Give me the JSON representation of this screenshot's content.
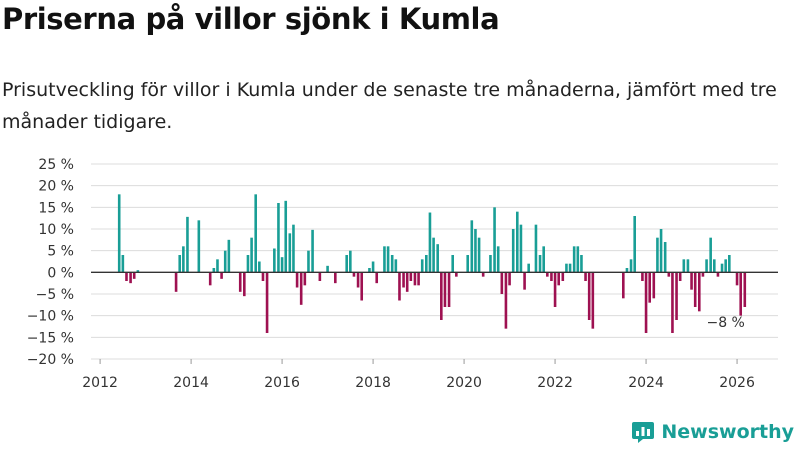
{
  "header": {
    "title": "Priserna på villor sjönk i Kumla",
    "subtitle": "Prisutveckling för villor i Kumla under de senaste tre månaderna, jämfört med tre månader tidigare."
  },
  "brand": {
    "name": "Newsworthy"
  },
  "colors": {
    "positive": "#199e96",
    "negative": "#9e1151",
    "grid": "#dcdcdc",
    "zero": "#333333"
  },
  "chart_data": {
    "type": "bar",
    "title": "Priserna på villor sjönk i Kumla",
    "subtitle": "Prisutveckling för villor i Kumla under de senaste tre månaderna, jämfört med tre månader tidigare.",
    "xlabel": "",
    "ylabel": "",
    "unit": "%",
    "ylim": [
      -20,
      25
    ],
    "yticks": [
      25,
      20,
      15,
      10,
      5,
      0,
      -5,
      -10,
      -15,
      -20
    ],
    "ytick_labels": [
      "25 %",
      "20 %",
      "15 %",
      "10 %",
      "5 %",
      "0 %",
      "−5 %",
      "−10 %",
      "−15 %",
      "−20 %"
    ],
    "xlim": [
      2011.8,
      2026.9
    ],
    "xticks": [
      2012,
      2014,
      2016,
      2018,
      2020,
      2022,
      2024,
      2026
    ],
    "xtick_labels": [
      "2012",
      "2014",
      "2016",
      "2018",
      "2020",
      "2022",
      "2024",
      "2026"
    ],
    "grid": true,
    "annotation": {
      "text": "−8 %",
      "x": 2025.75,
      "y": -8
    },
    "series": [
      {
        "name": "Prisutveckling",
        "points": [
          {
            "x": 2012.42,
            "y": 18
          },
          {
            "x": 2012.5,
            "y": 4
          },
          {
            "x": 2012.58,
            "y": -2
          },
          {
            "x": 2012.67,
            "y": -2.5
          },
          {
            "x": 2012.75,
            "y": -1.5
          },
          {
            "x": 2012.83,
            "y": 0.5
          },
          {
            "x": 2013.67,
            "y": -4.5
          },
          {
            "x": 2013.75,
            "y": 4
          },
          {
            "x": 2013.83,
            "y": 6
          },
          {
            "x": 2013.92,
            "y": 12.8
          },
          {
            "x": 2014.17,
            "y": 12
          },
          {
            "x": 2014.42,
            "y": -3
          },
          {
            "x": 2014.5,
            "y": 1
          },
          {
            "x": 2014.58,
            "y": 3
          },
          {
            "x": 2014.67,
            "y": -1.5
          },
          {
            "x": 2014.75,
            "y": 5
          },
          {
            "x": 2014.83,
            "y": 7.5
          },
          {
            "x": 2015.08,
            "y": -4.5
          },
          {
            "x": 2015.17,
            "y": -5.5
          },
          {
            "x": 2015.25,
            "y": 4
          },
          {
            "x": 2015.33,
            "y": 8
          },
          {
            "x": 2015.42,
            "y": 18
          },
          {
            "x": 2015.5,
            "y": 2.5
          },
          {
            "x": 2015.58,
            "y": -2
          },
          {
            "x": 2015.67,
            "y": -14
          },
          {
            "x": 2015.83,
            "y": 5.5
          },
          {
            "x": 2015.92,
            "y": 16
          },
          {
            "x": 2016.0,
            "y": 3.5
          },
          {
            "x": 2016.08,
            "y": 16.5
          },
          {
            "x": 2016.17,
            "y": 9
          },
          {
            "x": 2016.25,
            "y": 11
          },
          {
            "x": 2016.33,
            "y": -3.5
          },
          {
            "x": 2016.42,
            "y": -7.5
          },
          {
            "x": 2016.5,
            "y": -3
          },
          {
            "x": 2016.58,
            "y": 5
          },
          {
            "x": 2016.67,
            "y": 9.8
          },
          {
            "x": 2016.83,
            "y": -2
          },
          {
            "x": 2017.0,
            "y": 1.5
          },
          {
            "x": 2017.17,
            "y": -2.5
          },
          {
            "x": 2017.42,
            "y": 4
          },
          {
            "x": 2017.5,
            "y": 5
          },
          {
            "x": 2017.58,
            "y": -1
          },
          {
            "x": 2017.67,
            "y": -3.5
          },
          {
            "x": 2017.75,
            "y": -6.5
          },
          {
            "x": 2017.92,
            "y": 1
          },
          {
            "x": 2018.0,
            "y": 2.5
          },
          {
            "x": 2018.08,
            "y": -2.5
          },
          {
            "x": 2018.25,
            "y": 6
          },
          {
            "x": 2018.33,
            "y": 6
          },
          {
            "x": 2018.42,
            "y": 4
          },
          {
            "x": 2018.5,
            "y": 3
          },
          {
            "x": 2018.58,
            "y": -6.5
          },
          {
            "x": 2018.67,
            "y": -3.5
          },
          {
            "x": 2018.75,
            "y": -4.5
          },
          {
            "x": 2018.83,
            "y": -2
          },
          {
            "x": 2018.92,
            "y": -3
          },
          {
            "x": 2019.0,
            "y": -3
          },
          {
            "x": 2019.08,
            "y": 3
          },
          {
            "x": 2019.17,
            "y": 4
          },
          {
            "x": 2019.25,
            "y": 13.8
          },
          {
            "x": 2019.33,
            "y": 8
          },
          {
            "x": 2019.42,
            "y": 6.5
          },
          {
            "x": 2019.5,
            "y": -11
          },
          {
            "x": 2019.58,
            "y": -8
          },
          {
            "x": 2019.67,
            "y": -8
          },
          {
            "x": 2019.75,
            "y": 4
          },
          {
            "x": 2019.83,
            "y": -1
          },
          {
            "x": 2020.08,
            "y": 4
          },
          {
            "x": 2020.17,
            "y": 12
          },
          {
            "x": 2020.25,
            "y": 10
          },
          {
            "x": 2020.33,
            "y": 8
          },
          {
            "x": 2020.42,
            "y": -1
          },
          {
            "x": 2020.58,
            "y": 4
          },
          {
            "x": 2020.67,
            "y": 15
          },
          {
            "x": 2020.75,
            "y": 6
          },
          {
            "x": 2020.83,
            "y": -5
          },
          {
            "x": 2020.92,
            "y": -13
          },
          {
            "x": 2021.0,
            "y": -3
          },
          {
            "x": 2021.08,
            "y": 10
          },
          {
            "x": 2021.17,
            "y": 14
          },
          {
            "x": 2021.25,
            "y": 11
          },
          {
            "x": 2021.33,
            "y": -4
          },
          {
            "x": 2021.42,
            "y": 2
          },
          {
            "x": 2021.58,
            "y": 11
          },
          {
            "x": 2021.67,
            "y": 4
          },
          {
            "x": 2021.75,
            "y": 6
          },
          {
            "x": 2021.83,
            "y": -1
          },
          {
            "x": 2021.92,
            "y": -2
          },
          {
            "x": 2022.0,
            "y": -8
          },
          {
            "x": 2022.08,
            "y": -3
          },
          {
            "x": 2022.17,
            "y": -2
          },
          {
            "x": 2022.25,
            "y": 2
          },
          {
            "x": 2022.33,
            "y": 2
          },
          {
            "x": 2022.42,
            "y": 6
          },
          {
            "x": 2022.5,
            "y": 6
          },
          {
            "x": 2022.58,
            "y": 4
          },
          {
            "x": 2022.67,
            "y": -2
          },
          {
            "x": 2022.75,
            "y": -11
          },
          {
            "x": 2022.83,
            "y": -13
          },
          {
            "x": 2023.5,
            "y": -6
          },
          {
            "x": 2023.58,
            "y": 1
          },
          {
            "x": 2023.67,
            "y": 3
          },
          {
            "x": 2023.75,
            "y": 13
          },
          {
            "x": 2023.92,
            "y": -2
          },
          {
            "x": 2024.0,
            "y": -14
          },
          {
            "x": 2024.08,
            "y": -7
          },
          {
            "x": 2024.17,
            "y": -6
          },
          {
            "x": 2024.25,
            "y": 8
          },
          {
            "x": 2024.33,
            "y": 10
          },
          {
            "x": 2024.42,
            "y": 7
          },
          {
            "x": 2024.5,
            "y": -1
          },
          {
            "x": 2024.58,
            "y": -14
          },
          {
            "x": 2024.67,
            "y": -11
          },
          {
            "x": 2024.75,
            "y": -2
          },
          {
            "x": 2024.83,
            "y": 3
          },
          {
            "x": 2024.92,
            "y": 3
          },
          {
            "x": 2025.0,
            "y": -4
          },
          {
            "x": 2025.08,
            "y": -8
          },
          {
            "x": 2025.17,
            "y": -9
          },
          {
            "x": 2025.25,
            "y": -1
          },
          {
            "x": 2025.33,
            "y": 3
          },
          {
            "x": 2025.42,
            "y": 8
          },
          {
            "x": 2025.5,
            "y": 3
          },
          {
            "x": 2025.58,
            "y": -1
          },
          {
            "x": 2025.67,
            "y": 2
          },
          {
            "x": 2025.75,
            "y": 3
          },
          {
            "x": 2025.83,
            "y": 4
          },
          {
            "x": 2026.0,
            "y": -3
          },
          {
            "x": 2026.08,
            "y": -10
          },
          {
            "x": 2026.17,
            "y": -8
          }
        ]
      }
    ]
  }
}
